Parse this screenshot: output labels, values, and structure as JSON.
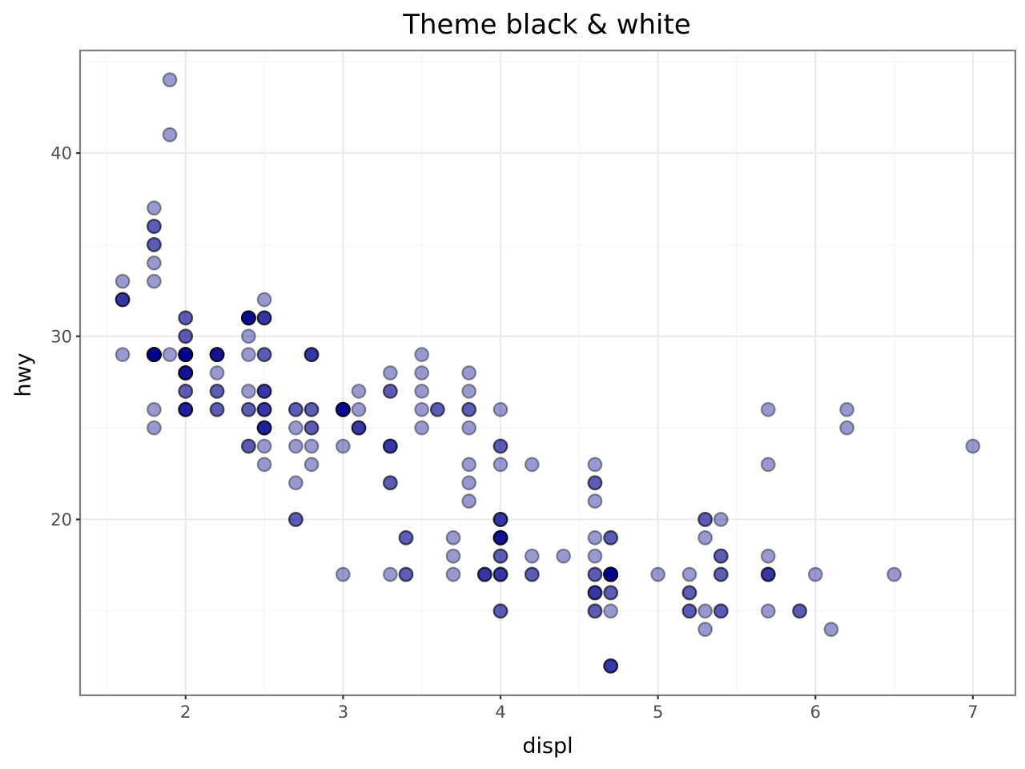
{
  "chart_data": {
    "type": "scatter",
    "title": "Theme black & white",
    "xlabel": "displ",
    "ylabel": "hwy",
    "xlim": [
      1.33,
      7.27
    ],
    "ylim": [
      10.4,
      45.6
    ],
    "x_ticks": [
      2,
      3,
      4,
      5,
      6,
      7
    ],
    "y_ticks": [
      20,
      30,
      40
    ],
    "x_tick_labels": [
      "2",
      "3",
      "4",
      "5",
      "6",
      "7"
    ],
    "y_tick_labels": [
      "20",
      "30",
      "40"
    ],
    "grid": true,
    "point_color": "#00008b",
    "point_alpha": 0.4,
    "points": [
      [
        1.8,
        29
      ],
      [
        1.8,
        29
      ],
      [
        2.0,
        31
      ],
      [
        2.0,
        30
      ],
      [
        2.8,
        26
      ],
      [
        2.8,
        26
      ],
      [
        3.1,
        27
      ],
      [
        1.8,
        26
      ],
      [
        1.8,
        25
      ],
      [
        2.0,
        28
      ],
      [
        2.0,
        27
      ],
      [
        2.8,
        25
      ],
      [
        2.8,
        25
      ],
      [
        3.1,
        25
      ],
      [
        3.1,
        25
      ],
      [
        2.8,
        24
      ],
      [
        3.1,
        25
      ],
      [
        4.2,
        23
      ],
      [
        5.3,
        20
      ],
      [
        5.3,
        15
      ],
      [
        5.3,
        20
      ],
      [
        5.7,
        17
      ],
      [
        6.0,
        17
      ],
      [
        5.7,
        26
      ],
      [
        5.7,
        23
      ],
      [
        6.2,
        26
      ],
      [
        6.2,
        25
      ],
      [
        7.0,
        24
      ],
      [
        5.3,
        19
      ],
      [
        5.3,
        14
      ],
      [
        5.7,
        15
      ],
      [
        6.5,
        17
      ],
      [
        2.4,
        27
      ],
      [
        2.4,
        30
      ],
      [
        3.1,
        26
      ],
      [
        3.5,
        29
      ],
      [
        3.6,
        26
      ],
      [
        2.4,
        24
      ],
      [
        3.0,
        24
      ],
      [
        3.3,
        22
      ],
      [
        3.3,
        22
      ],
      [
        3.3,
        24
      ],
      [
        3.3,
        24
      ],
      [
        3.3,
        24
      ],
      [
        3.8,
        22
      ],
      [
        3.8,
        21
      ],
      [
        3.8,
        23
      ],
      [
        4.0,
        23
      ],
      [
        3.7,
        19
      ],
      [
        3.7,
        18
      ],
      [
        3.9,
        17
      ],
      [
        3.9,
        17
      ],
      [
        4.7,
        19
      ],
      [
        4.7,
        19
      ],
      [
        5.2,
        17
      ],
      [
        5.2,
        15
      ],
      [
        3.9,
        17
      ],
      [
        4.7,
        17
      ],
      [
        4.7,
        12
      ],
      [
        4.7,
        17
      ],
      [
        5.2,
        16
      ],
      [
        5.7,
        18
      ],
      [
        5.9,
        15
      ],
      [
        4.7,
        16
      ],
      [
        4.7,
        12
      ],
      [
        4.7,
        17
      ],
      [
        4.7,
        17
      ],
      [
        4.7,
        16
      ],
      [
        4.7,
        12
      ],
      [
        5.2,
        15
      ],
      [
        5.2,
        16
      ],
      [
        5.7,
        17
      ],
      [
        5.9,
        15
      ],
      [
        4.6,
        17
      ],
      [
        5.4,
        17
      ],
      [
        5.4,
        18
      ],
      [
        4.0,
        17
      ],
      [
        4.0,
        19
      ],
      [
        4.0,
        17
      ],
      [
        4.0,
        19
      ],
      [
        4.6,
        19
      ],
      [
        5.0,
        17
      ],
      [
        4.2,
        17
      ],
      [
        4.2,
        17
      ],
      [
        4.6,
        16
      ],
      [
        4.6,
        16
      ],
      [
        4.6,
        17
      ],
      [
        5.4,
        15
      ],
      [
        5.4,
        17
      ],
      [
        3.8,
        26
      ],
      [
        3.8,
        25
      ],
      [
        4.0,
        26
      ],
      [
        4.0,
        24
      ],
      [
        4.6,
        21
      ],
      [
        4.6,
        22
      ],
      [
        4.6,
        23
      ],
      [
        4.6,
        22
      ],
      [
        5.4,
        20
      ],
      [
        1.6,
        33
      ],
      [
        1.6,
        32
      ],
      [
        1.6,
        32
      ],
      [
        1.6,
        29
      ],
      [
        1.6,
        32
      ],
      [
        1.8,
        34
      ],
      [
        1.8,
        36
      ],
      [
        1.8,
        36
      ],
      [
        2.0,
        29
      ],
      [
        2.0,
        26
      ],
      [
        2.0,
        27
      ],
      [
        2.0,
        30
      ],
      [
        2.0,
        31
      ],
      [
        2.0,
        26
      ],
      [
        2.7,
        26
      ],
      [
        2.7,
        25
      ],
      [
        2.7,
        26
      ],
      [
        3.0,
        17
      ],
      [
        3.7,
        17
      ],
      [
        4.0,
        20
      ],
      [
        4.7,
        17
      ],
      [
        4.7,
        15
      ],
      [
        4.7,
        17
      ],
      [
        5.7,
        17
      ],
      [
        6.1,
        14
      ],
      [
        4.0,
        19
      ],
      [
        4.2,
        18
      ],
      [
        4.4,
        18
      ],
      [
        4.6,
        18
      ],
      [
        5.4,
        18
      ],
      [
        1.8,
        35
      ],
      [
        1.8,
        37
      ],
      [
        1.8,
        35
      ],
      [
        1.8,
        33
      ],
      [
        2.0,
        29
      ],
      [
        2.0,
        29
      ],
      [
        2.0,
        29
      ],
      [
        2.4,
        31
      ],
      [
        2.4,
        31
      ],
      [
        2.4,
        29
      ],
      [
        2.4,
        26
      ],
      [
        2.4,
        26
      ],
      [
        3.0,
        26
      ],
      [
        3.0,
        26
      ],
      [
        3.3,
        17
      ],
      [
        2.5,
        25
      ],
      [
        2.5,
        24
      ],
      [
        2.5,
        27
      ],
      [
        2.5,
        25
      ],
      [
        2.5,
        26
      ],
      [
        2.5,
        23
      ],
      [
        2.2,
        26
      ],
      [
        2.2,
        26
      ],
      [
        2.5,
        26
      ],
      [
        2.5,
        26
      ],
      [
        2.5,
        25
      ],
      [
        2.5,
        27
      ],
      [
        2.5,
        25
      ],
      [
        2.5,
        27
      ],
      [
        2.7,
        20
      ],
      [
        2.7,
        20
      ],
      [
        3.4,
        19
      ],
      [
        3.4,
        17
      ],
      [
        4.0,
        20
      ],
      [
        4.7,
        17
      ],
      [
        2.2,
        29
      ],
      [
        2.2,
        27
      ],
      [
        2.4,
        31
      ],
      [
        2.4,
        31
      ],
      [
        3.0,
        26
      ],
      [
        3.0,
        26
      ],
      [
        3.5,
        28
      ],
      [
        2.2,
        27
      ],
      [
        2.2,
        29
      ],
      [
        2.4,
        31
      ],
      [
        2.4,
        31
      ],
      [
        3.0,
        26
      ],
      [
        3.0,
        26
      ],
      [
        3.3,
        27
      ],
      [
        1.8,
        29
      ],
      [
        1.8,
        29
      ],
      [
        1.8,
        29
      ],
      [
        2.2,
        28
      ],
      [
        2.2,
        29
      ],
      [
        2.8,
        23
      ],
      [
        4.0,
        18
      ],
      [
        4.0,
        19
      ],
      [
        4.0,
        15
      ],
      [
        4.0,
        24
      ],
      [
        4.0,
        20
      ],
      [
        4.6,
        15
      ],
      [
        4.6,
        15
      ],
      [
        4.6,
        16
      ],
      [
        5.4,
        15
      ],
      [
        3.8,
        27
      ],
      [
        3.8,
        28
      ],
      [
        3.8,
        26
      ],
      [
        3.3,
        28
      ],
      [
        3.3,
        27
      ],
      [
        3.5,
        27
      ],
      [
        2.4,
        24
      ],
      [
        2.0,
        29
      ],
      [
        2.0,
        26
      ],
      [
        2.0,
        29
      ],
      [
        2.0,
        29
      ],
      [
        2.0,
        28
      ],
      [
        2.8,
        29
      ],
      [
        1.9,
        44
      ],
      [
        1.9,
        41
      ],
      [
        1.9,
        29
      ],
      [
        2.0,
        26
      ],
      [
        2.0,
        28
      ],
      [
        2.5,
        29
      ],
      [
        2.5,
        29
      ],
      [
        1.8,
        29
      ],
      [
        1.8,
        29
      ],
      [
        2.0,
        28
      ],
      [
        2.0,
        29
      ],
      [
        2.8,
        29
      ],
      [
        1.8,
        29
      ],
      [
        1.8,
        29
      ],
      [
        2.0,
        28
      ],
      [
        2.0,
        29
      ],
      [
        2.8,
        29
      ],
      [
        3.6,
        26
      ],
      [
        3.5,
        25
      ],
      [
        3.5,
        26
      ],
      [
        2.5,
        32
      ],
      [
        2.5,
        31
      ],
      [
        2.5,
        31
      ],
      [
        2.2,
        29
      ],
      [
        2.2,
        29
      ],
      [
        2.5,
        31
      ],
      [
        2.7,
        22
      ],
      [
        2.7,
        24
      ],
      [
        3.4,
        17
      ],
      [
        3.4,
        19
      ],
      [
        4.0,
        17
      ],
      [
        4.0,
        18
      ],
      [
        4.0,
        15
      ],
      [
        4.7,
        17
      ],
      [
        4.0,
        19
      ]
    ]
  }
}
